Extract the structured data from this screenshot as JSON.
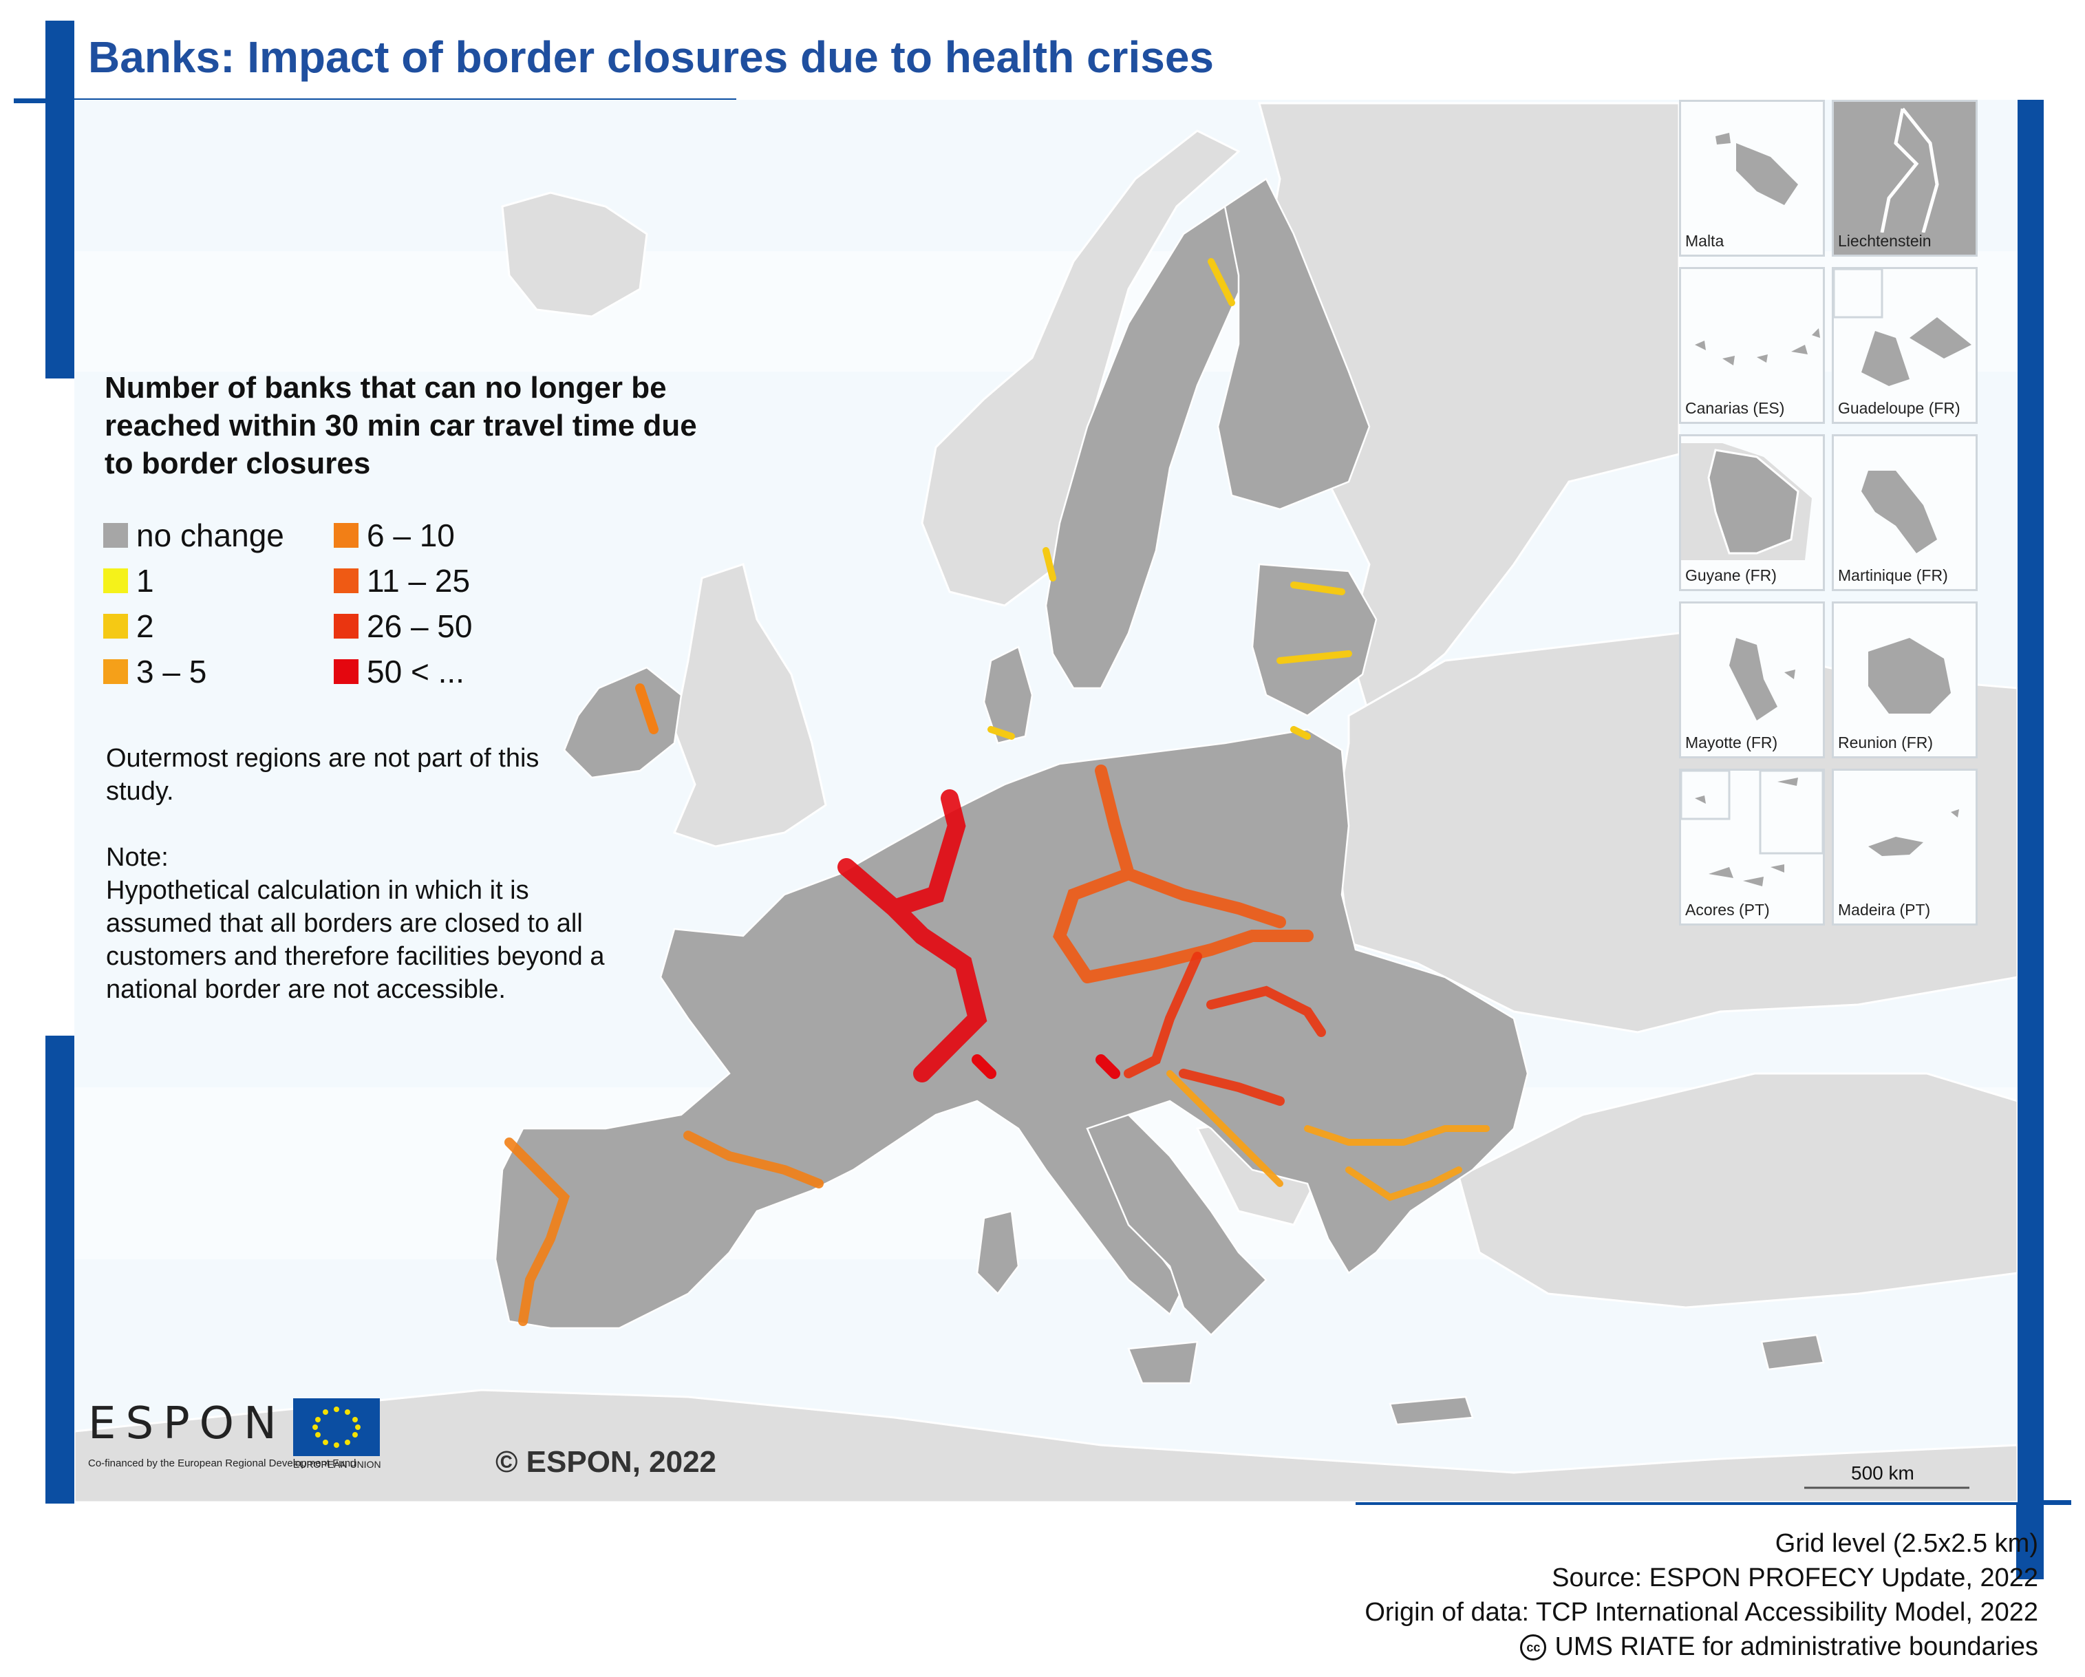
{
  "title": "Banks: Impact of border closures due to health crises",
  "legend": {
    "title": "Number of banks that can no longer be reached within 30 min car travel time due to border closures",
    "items": [
      {
        "label": "no change",
        "color": "#a6a6a6"
      },
      {
        "label": "1",
        "color": "#f5f21a"
      },
      {
        "label": "2",
        "color": "#f5c914"
      },
      {
        "label": "3 – 5",
        "color": "#f5a019"
      },
      {
        "label": "6 – 10",
        "color": "#f27f16"
      },
      {
        "label": "11 – 25",
        "color": "#ef5a14"
      },
      {
        "label": "26 – 50",
        "color": "#ea3510"
      },
      {
        "label": "50 < ...",
        "color": "#e4070f"
      }
    ]
  },
  "notes": {
    "outermost": "Outermost regions are not part of this study.",
    "note_heading": "Note:",
    "note_text": "Hypothetical calculation in which it is assumed that all borders are closed to all customers and therefore facilities beyond a national border are not accessible."
  },
  "insets": [
    "Malta",
    "Liechtenstein",
    "Canarias (ES)",
    "Guadeloupe (FR)",
    "Guyane (FR)",
    "Martinique (FR)",
    "Mayotte (FR)",
    "Reunion (FR)",
    "Acores (PT)",
    "Madeira (PT)"
  ],
  "logos": {
    "espon": "ESPON",
    "cofinanced": "Co-financed by the European Regional Development Fund",
    "eu": "EUROPEAN UNION"
  },
  "copyright": "© ESPON, 2022",
  "scale": "500 km",
  "footer": {
    "grid": "Grid level (2.5x2.5 km)",
    "source": "Source: ESPON PROFECY Update, 2022",
    "origin": "Origin of data: TCP International Accessibility Model, 2022",
    "boundaries": "UMS RIATE for administrative boundaries"
  },
  "colors": {
    "frame_blue": "#0b4ea2",
    "title_blue": "#1f4f9f",
    "land_study": "#a6a6a6",
    "land_other": "#dedede",
    "sea": "#f3f9fd"
  }
}
